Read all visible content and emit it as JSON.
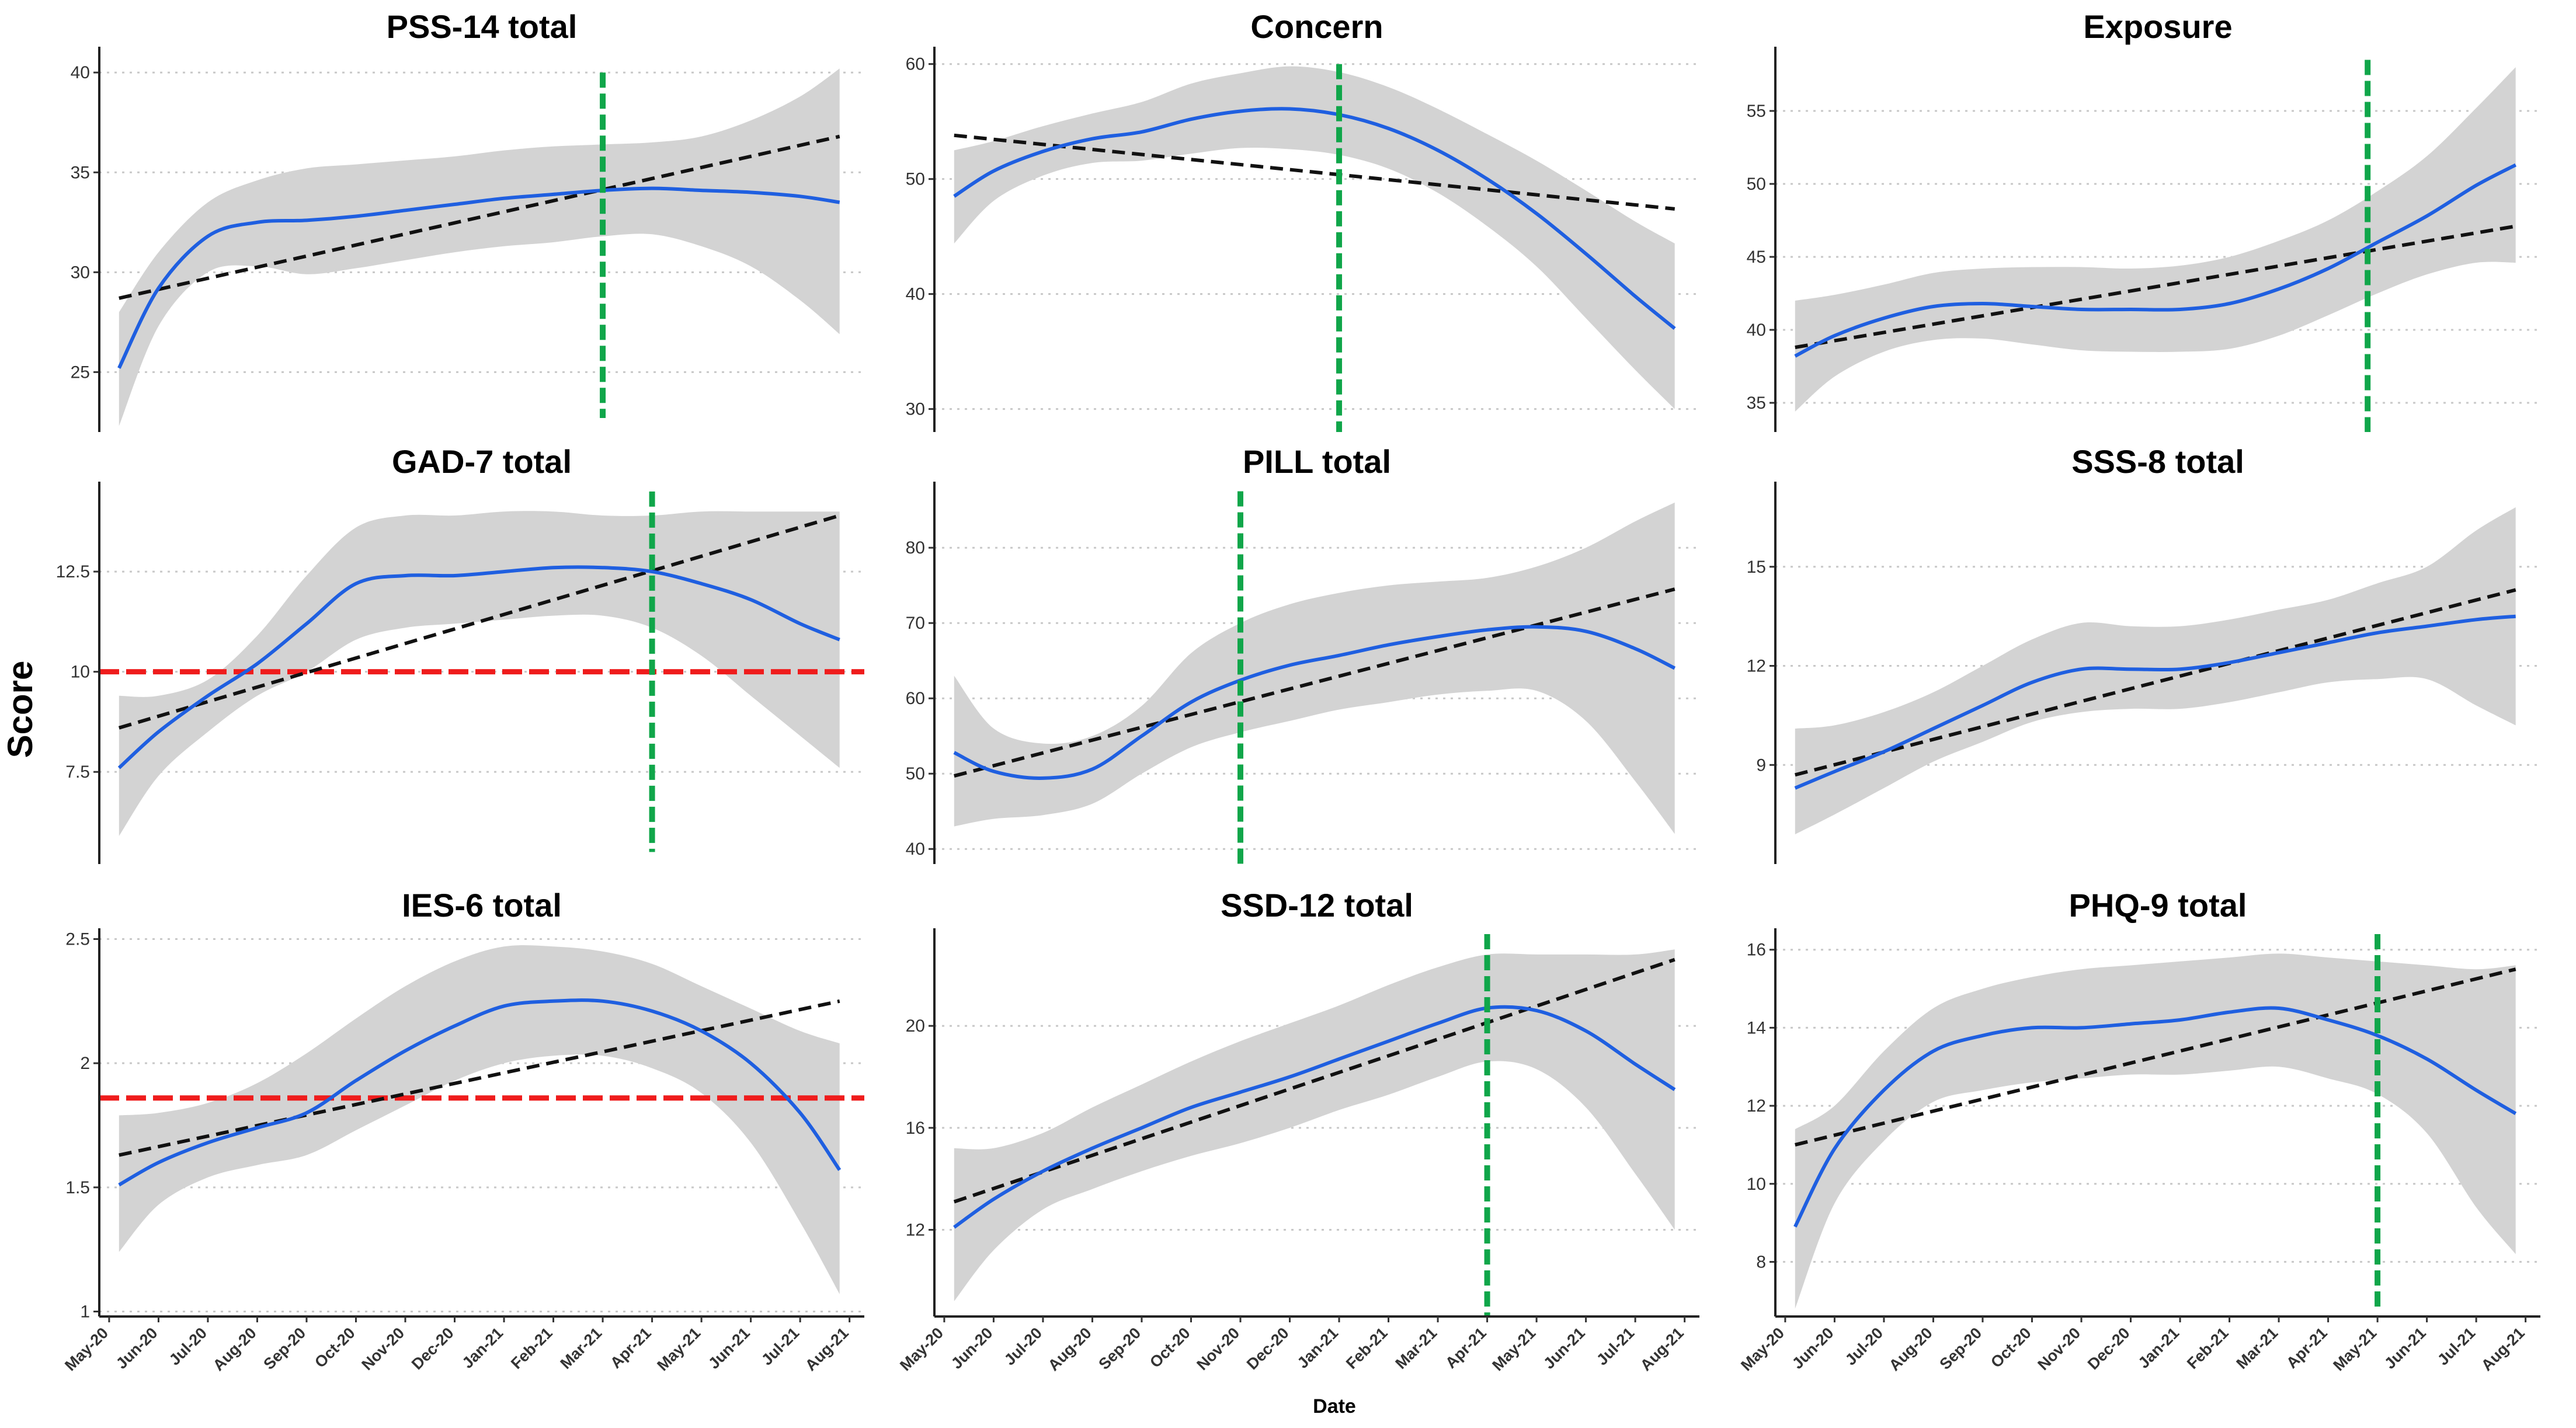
{
  "figure": {
    "ylabel": "Score",
    "xlabel": "Date"
  },
  "chart_data": [
    {
      "type": "line",
      "title": "PSS-14 total",
      "x": [
        "May-20",
        "Jun-20",
        "Jul-20",
        "Aug-20",
        "Sep-20",
        "Oct-20",
        "Nov-20",
        "Dec-20",
        "Jan-21",
        "Feb-21",
        "Mar-21",
        "Apr-21",
        "May-21",
        "Jun-21",
        "Jul-21",
        "Aug-21"
      ],
      "ylim": [
        22,
        41
      ],
      "yticks": [
        25,
        30,
        35,
        40
      ],
      "xlim": [
        -0.2,
        15.3
      ],
      "smooth": {
        "x": [
          0.2,
          1,
          2,
          3,
          4,
          5,
          6,
          7,
          8,
          9,
          10,
          11,
          12,
          13,
          14,
          14.8
        ],
        "y": [
          25.2,
          29.2,
          31.8,
          32.5,
          32.6,
          32.8,
          33.1,
          33.4,
          33.7,
          33.9,
          34.1,
          34.2,
          34.1,
          34.0,
          33.8,
          33.5
        ]
      },
      "ci_upper": [
        28.0,
        31.0,
        33.5,
        34.6,
        35.2,
        35.4,
        35.6,
        35.8,
        36.1,
        36.3,
        36.4,
        36.5,
        36.8,
        37.6,
        38.8,
        40.2
      ],
      "ci_lower": [
        22.3,
        27.3,
        30.0,
        30.3,
        29.9,
        30.2,
        30.6,
        31.0,
        31.3,
        31.5,
        31.8,
        31.9,
        31.3,
        30.3,
        28.6,
        26.9
      ],
      "trend": {
        "x": [
          0.2,
          14.8
        ],
        "y": [
          28.7,
          36.8
        ]
      },
      "vline": 10.0,
      "vline_range": [
        22.7,
        40.0
      ],
      "hline": null
    },
    {
      "type": "line",
      "title": "Concern",
      "x": [
        "May-20",
        "Jun-20",
        "Jul-20",
        "Aug-20",
        "Sep-20",
        "Oct-20",
        "Nov-20",
        "Dec-20",
        "Jan-21",
        "Feb-21",
        "Mar-21",
        "Apr-21",
        "May-21",
        "Jun-21",
        "Jul-21",
        "Aug-21"
      ],
      "ylim": [
        28,
        61
      ],
      "yticks": [
        30,
        40,
        50,
        60
      ],
      "xlim": [
        -0.2,
        15.3
      ],
      "smooth": {
        "x": [
          0.2,
          1,
          2,
          3,
          4,
          5,
          6,
          7,
          8,
          9,
          10,
          11,
          12,
          13,
          14,
          14.8
        ],
        "y": [
          48.5,
          50.7,
          52.4,
          53.5,
          54.1,
          55.2,
          55.9,
          56.1,
          55.6,
          54.4,
          52.5,
          50.0,
          47.0,
          43.5,
          39.8,
          37.0
        ]
      },
      "ci_upper": [
        52.5,
        53.3,
        54.6,
        55.7,
        56.7,
        58.3,
        59.2,
        59.8,
        59.3,
        58.0,
        56.1,
        53.9,
        51.6,
        49.0,
        46.3,
        44.4
      ],
      "ci_lower": [
        44.4,
        48.1,
        50.3,
        51.4,
        51.6,
        52.2,
        52.7,
        52.6,
        52.1,
        50.9,
        48.8,
        45.9,
        42.4,
        37.9,
        33.4,
        30.0
      ],
      "trend": {
        "x": [
          0.2,
          14.8
        ],
        "y": [
          53.8,
          47.4
        ]
      },
      "vline": 8.0,
      "vline_range": [
        28.0,
        60.0
      ],
      "hline": null
    },
    {
      "type": "line",
      "title": "Exposure",
      "x": [
        "May-20",
        "Jun-20",
        "Jul-20",
        "Aug-20",
        "Sep-20",
        "Oct-20",
        "Nov-20",
        "Dec-20",
        "Jan-21",
        "Feb-21",
        "Mar-21",
        "Apr-21",
        "May-21",
        "Jun-21",
        "Jul-21",
        "Aug-21"
      ],
      "ylim": [
        33,
        59
      ],
      "yticks": [
        35,
        40,
        45,
        50,
        55
      ],
      "xlim": [
        -0.2,
        15.3
      ],
      "smooth": {
        "x": [
          0.2,
          1,
          2,
          3,
          4,
          5,
          6,
          7,
          8,
          9,
          10,
          11,
          12,
          13,
          14,
          14.8
        ],
        "y": [
          38.2,
          39.6,
          40.8,
          41.6,
          41.8,
          41.6,
          41.4,
          41.4,
          41.4,
          41.8,
          42.8,
          44.2,
          46.0,
          47.8,
          49.9,
          51.3
        ]
      },
      "ci_upper": [
        42.0,
        42.4,
        43.1,
        43.9,
        44.2,
        44.3,
        44.3,
        44.2,
        44.4,
        45.0,
        46.1,
        47.5,
        49.5,
        51.9,
        55.2,
        58.0
      ],
      "ci_lower": [
        34.4,
        36.8,
        38.5,
        39.3,
        39.4,
        39.0,
        38.6,
        38.5,
        38.5,
        38.7,
        39.6,
        41.0,
        42.5,
        43.8,
        44.6,
        44.6
      ],
      "trend": {
        "x": [
          0.2,
          14.8
        ],
        "y": [
          38.8,
          47.1
        ]
      },
      "vline": 11.8,
      "vline_range": [
        33.0,
        58.5
      ],
      "hline": null
    },
    {
      "type": "line",
      "title": "GAD-7 total",
      "x": [
        "May-20",
        "Jun-20",
        "Jul-20",
        "Aug-20",
        "Sep-20",
        "Oct-20",
        "Nov-20",
        "Dec-20",
        "Jan-21",
        "Feb-21",
        "Mar-21",
        "Apr-21",
        "May-21",
        "Jun-21",
        "Jul-21",
        "Aug-21"
      ],
      "ylim": [
        5.2,
        14.6
      ],
      "yticks": [
        7.5,
        10.0,
        12.5
      ],
      "xlim": [
        -0.2,
        15.3
      ],
      "smooth": {
        "x": [
          0.2,
          1,
          2,
          3,
          4,
          5,
          6,
          7,
          8,
          9,
          10,
          11,
          12,
          13,
          14,
          14.8
        ],
        "y": [
          7.6,
          8.5,
          9.4,
          10.2,
          11.2,
          12.2,
          12.4,
          12.4,
          12.5,
          12.6,
          12.6,
          12.5,
          12.2,
          11.8,
          11.2,
          10.8
        ]
      },
      "ci_upper": [
        9.4,
        9.4,
        9.8,
        10.9,
        12.4,
        13.6,
        13.9,
        13.9,
        14.0,
        14.0,
        13.9,
        13.9,
        14.0,
        14.0,
        14.0,
        14.0
      ],
      "ci_lower": [
        5.9,
        7.4,
        8.5,
        9.4,
        10.0,
        10.8,
        11.1,
        11.2,
        11.3,
        11.4,
        11.4,
        11.1,
        10.4,
        9.4,
        8.4,
        7.6
      ],
      "trend": {
        "x": [
          0.2,
          14.8
        ],
        "y": [
          8.6,
          13.9
        ]
      },
      "vline": 11.0,
      "vline_range": [
        5.5,
        14.5
      ],
      "hline": 10.0
    },
    {
      "type": "line",
      "title": "PILL total",
      "x": [
        "May-20",
        "Jun-20",
        "Jul-20",
        "Aug-20",
        "Sep-20",
        "Oct-20",
        "Nov-20",
        "Dec-20",
        "Jan-21",
        "Feb-21",
        "Mar-21",
        "Apr-21",
        "May-21",
        "Jun-21",
        "Jul-21",
        "Aug-21"
      ],
      "ylim": [
        38,
        88
      ],
      "yticks": [
        40,
        50,
        60,
        70,
        80
      ],
      "xlim": [
        -0.2,
        15.3
      ],
      "smooth": {
        "x": [
          0.2,
          1,
          2,
          3,
          4,
          5,
          6,
          7,
          8,
          9,
          10,
          11,
          12,
          13,
          14,
          14.8
        ],
        "y": [
          52.8,
          50.3,
          49.4,
          50.6,
          55.0,
          59.5,
          62.4,
          64.4,
          65.7,
          67.1,
          68.2,
          69.1,
          69.5,
          68.9,
          66.6,
          64.0
        ]
      },
      "ci_upper": [
        63.0,
        56.0,
        54.0,
        55.0,
        59.0,
        66.0,
        70.0,
        72.5,
        74.0,
        75.0,
        75.5,
        76.0,
        77.5,
        80.0,
        83.5,
        86.0
      ],
      "ci_lower": [
        43.0,
        44.0,
        44.5,
        46.0,
        50.0,
        53.5,
        55.5,
        57.0,
        58.5,
        59.5,
        60.5,
        61.0,
        61.0,
        57.0,
        49.0,
        42.0
      ],
      "trend": {
        "x": [
          0.2,
          14.8
        ],
        "y": [
          49.7,
          74.5
        ]
      },
      "vline": 6.0,
      "vline_range": [
        38.0,
        87.5
      ],
      "hline": null
    },
    {
      "type": "line",
      "title": "SSS-8 total",
      "x": [
        "May-20",
        "Jun-20",
        "Jul-20",
        "Aug-20",
        "Sep-20",
        "Oct-20",
        "Nov-20",
        "Dec-20",
        "Jan-21",
        "Feb-21",
        "Mar-21",
        "Apr-21",
        "May-21",
        "Jun-21",
        "Jul-21",
        "Aug-21"
      ],
      "ylim": [
        6.0,
        17.4
      ],
      "yticks": [
        9,
        12,
        15
      ],
      "xlim": [
        -0.2,
        15.3
      ],
      "smooth": {
        "x": [
          0.2,
          1,
          2,
          3,
          4,
          5,
          6,
          7,
          8,
          9,
          10,
          11,
          12,
          13,
          14,
          14.8
        ],
        "y": [
          8.3,
          8.8,
          9.4,
          10.1,
          10.8,
          11.5,
          11.9,
          11.9,
          11.9,
          12.1,
          12.4,
          12.7,
          13.0,
          13.2,
          13.4,
          13.5
        ]
      },
      "ci_upper": [
        10.1,
        10.2,
        10.6,
        11.2,
        12.0,
        12.8,
        13.3,
        13.2,
        13.2,
        13.4,
        13.7,
        14.0,
        14.5,
        15.0,
        16.1,
        16.8
      ],
      "ci_lower": [
        6.9,
        7.5,
        8.3,
        9.1,
        9.7,
        10.3,
        10.6,
        10.7,
        10.7,
        10.9,
        11.2,
        11.5,
        11.6,
        11.6,
        10.8,
        10.2
      ],
      "trend": {
        "x": [
          0.2,
          14.8
        ],
        "y": [
          8.7,
          14.3
        ]
      },
      "vline": null,
      "vline_range": null,
      "hline": null
    },
    {
      "type": "line",
      "title": "IES-6 total",
      "x": [
        "May-20",
        "Jun-20",
        "Jul-20",
        "Aug-20",
        "Sep-20",
        "Oct-20",
        "Nov-20",
        "Dec-20",
        "Jan-21",
        "Feb-21",
        "Mar-21",
        "Apr-21",
        "May-21",
        "Jun-21",
        "Jul-21",
        "Aug-21"
      ],
      "ylim": [
        0.98,
        2.52
      ],
      "yticks": [
        1.0,
        1.5,
        2.0,
        2.5
      ],
      "xlim": [
        -0.2,
        15.3
      ],
      "smooth": {
        "x": [
          0.2,
          1,
          2,
          3,
          4,
          5,
          6,
          7,
          8,
          9,
          10,
          11,
          12,
          13,
          14,
          14.8
        ],
        "y": [
          1.51,
          1.6,
          1.68,
          1.74,
          1.8,
          1.93,
          2.05,
          2.15,
          2.23,
          2.25,
          2.25,
          2.21,
          2.13,
          2.0,
          1.8,
          1.57
        ]
      },
      "ci_upper": [
        1.79,
        1.8,
        1.84,
        1.92,
        2.04,
        2.18,
        2.31,
        2.41,
        2.47,
        2.47,
        2.45,
        2.4,
        2.31,
        2.22,
        2.13,
        2.08
      ],
      "ci_lower": [
        1.24,
        1.43,
        1.54,
        1.59,
        1.63,
        1.73,
        1.83,
        1.93,
        2.0,
        2.03,
        2.03,
        1.98,
        1.88,
        1.68,
        1.36,
        1.07
      ],
      "trend": {
        "x": [
          0.2,
          14.8
        ],
        "y": [
          1.63,
          2.25
        ]
      },
      "vline": null,
      "vline_range": null,
      "hline": 1.86
    },
    {
      "type": "line",
      "title": "SSD-12 total",
      "x": [
        "May-20",
        "Jun-20",
        "Jul-20",
        "Aug-20",
        "Sep-20",
        "Oct-20",
        "Nov-20",
        "Dec-20",
        "Jan-21",
        "Feb-21",
        "Mar-21",
        "Apr-21",
        "May-21",
        "Jun-21",
        "Jul-21",
        "Aug-21"
      ],
      "ylim": [
        8.6,
        23.6
      ],
      "yticks": [
        12,
        16,
        20
      ],
      "xlim": [
        -0.2,
        15.3
      ],
      "smooth": {
        "x": [
          0.2,
          1,
          2,
          3,
          4,
          5,
          6,
          7,
          8,
          9,
          10,
          11,
          12,
          13,
          14,
          14.8
        ],
        "y": [
          12.1,
          13.2,
          14.3,
          15.2,
          16.0,
          16.8,
          17.4,
          18.0,
          18.7,
          19.4,
          20.1,
          20.7,
          20.6,
          19.8,
          18.5,
          17.5
        ]
      },
      "ci_upper": [
        15.2,
        15.2,
        15.8,
        16.8,
        17.7,
        18.6,
        19.4,
        20.1,
        20.8,
        21.6,
        22.3,
        22.8,
        22.8,
        22.8,
        22.8,
        23.0
      ],
      "ci_lower": [
        9.2,
        11.2,
        12.8,
        13.6,
        14.3,
        14.9,
        15.4,
        16.0,
        16.7,
        17.3,
        18.0,
        18.6,
        18.3,
        16.8,
        14.2,
        12.0
      ],
      "trend": {
        "x": [
          0.2,
          14.8
        ],
        "y": [
          13.1,
          22.6
        ]
      },
      "vline": 11.0,
      "vline_range": [
        8.6,
        23.6
      ],
      "hline": null
    },
    {
      "type": "line",
      "title": "PHQ-9 total",
      "x": [
        "May-20",
        "Jun-20",
        "Jul-20",
        "Aug-20",
        "Sep-20",
        "Oct-20",
        "Nov-20",
        "Dec-20",
        "Jan-21",
        "Feb-21",
        "Mar-21",
        "Apr-21",
        "May-21",
        "Jun-21",
        "Jul-21",
        "Aug-21"
      ],
      "ylim": [
        6.6,
        16.4
      ],
      "yticks": [
        8,
        10,
        12,
        14,
        16
      ],
      "xlim": [
        -0.2,
        15.3
      ],
      "smooth": {
        "x": [
          0.2,
          1,
          2,
          3,
          4,
          5,
          6,
          7,
          8,
          9,
          10,
          11,
          12,
          13,
          14,
          14.8
        ],
        "y": [
          8.9,
          10.9,
          12.4,
          13.4,
          13.8,
          14.0,
          14.0,
          14.1,
          14.2,
          14.4,
          14.5,
          14.2,
          13.8,
          13.2,
          12.4,
          11.8
        ]
      },
      "ci_upper": [
        11.4,
        12.0,
        13.4,
        14.5,
        15.0,
        15.3,
        15.5,
        15.6,
        15.7,
        15.8,
        15.9,
        15.8,
        15.7,
        15.6,
        15.5,
        15.6
      ],
      "ci_lower": [
        6.8,
        9.5,
        11.1,
        12.1,
        12.4,
        12.6,
        12.7,
        12.8,
        12.8,
        12.9,
        13.0,
        12.7,
        12.3,
        11.3,
        9.4,
        8.2
      ],
      "trend": {
        "x": [
          0.2,
          14.8
        ],
        "y": [
          11.0,
          15.5
        ]
      },
      "vline": 12.0,
      "vline_range": [
        6.8,
        16.4
      ],
      "hline": null
    }
  ]
}
